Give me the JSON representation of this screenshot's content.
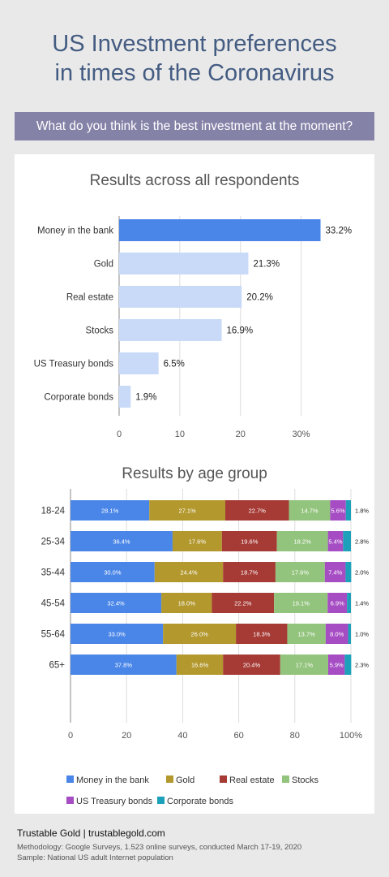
{
  "header": {
    "title_line1": "US Investment preferences",
    "title_line2": "in times of the Coronavirus",
    "question": "What do you think is the best investment at the moment?"
  },
  "footer": {
    "brand": "Trustable Gold | trustablegold.com",
    "methodology": "Methodology: Google Surveys, 1.523 online surveys, conducted March 17-19, 2020",
    "sample": "Sample: National US adult Internet population"
  },
  "colors": {
    "primary_bar": "#4a86e8",
    "secondary_bar": "#c9daf8",
    "money_in_the_bank": "#4a86e8",
    "gold": "#b3982e",
    "real_estate": "#a63a35",
    "stocks": "#93c47d",
    "us_treasury_bonds": "#a64dc4",
    "corporate_bonds": "#1da0b9",
    "title": "#445c82",
    "question_bg": "#8582a8"
  },
  "chart_data": [
    {
      "type": "bar",
      "orientation": "horizontal",
      "title": "Results across all respondents",
      "categories": [
        "Money in the bank",
        "Gold",
        "Real estate",
        "Stocks",
        "US Treasury bonds",
        "Corporate bonds"
      ],
      "values": [
        33.2,
        21.3,
        20.2,
        16.9,
        6.5,
        1.9
      ],
      "data_labels": [
        "33.2%",
        "21.3%",
        "20.2%",
        "16.9%",
        "6.5%",
        "1.9%"
      ],
      "xlim": [
        0,
        35
      ],
      "x_ticks": [
        "0",
        "10",
        "20",
        "30%"
      ],
      "grid": true
    },
    {
      "type": "bar",
      "orientation": "horizontal",
      "stacked": true,
      "title": "Results by age group",
      "categories": [
        "18-24",
        "25-34",
        "35-44",
        "45-54",
        "55-64",
        "65+"
      ],
      "series": [
        {
          "name": "Money in the bank",
          "color": "#4a86e8",
          "values": [
            28.1,
            36.4,
            30.0,
            32.4,
            33.0,
            37.8
          ]
        },
        {
          "name": "Gold",
          "color": "#b3982e",
          "values": [
            27.1,
            17.6,
            24.4,
            18.0,
            26.0,
            16.6
          ]
        },
        {
          "name": "Real estate",
          "color": "#a63a35",
          "values": [
            22.7,
            19.6,
            18.7,
            22.2,
            18.3,
            20.4
          ]
        },
        {
          "name": "Stocks",
          "color": "#93c47d",
          "values": [
            14.7,
            18.2,
            17.6,
            19.1,
            13.7,
            17.1
          ]
        },
        {
          "name": "US Treasury bonds",
          "color": "#a64dc4",
          "values": [
            5.6,
            5.4,
            7.4,
            6.9,
            8.0,
            5.9
          ]
        },
        {
          "name": "Corporate bonds",
          "color": "#1da0b9",
          "values": [
            1.8,
            2.8,
            2.0,
            1.4,
            1.0,
            2.3
          ]
        }
      ],
      "xlim": [
        0,
        100
      ],
      "x_ticks": [
        "0",
        "20",
        "40",
        "60",
        "80",
        "100%"
      ],
      "legend_position": "bottom",
      "grid": true
    }
  ]
}
